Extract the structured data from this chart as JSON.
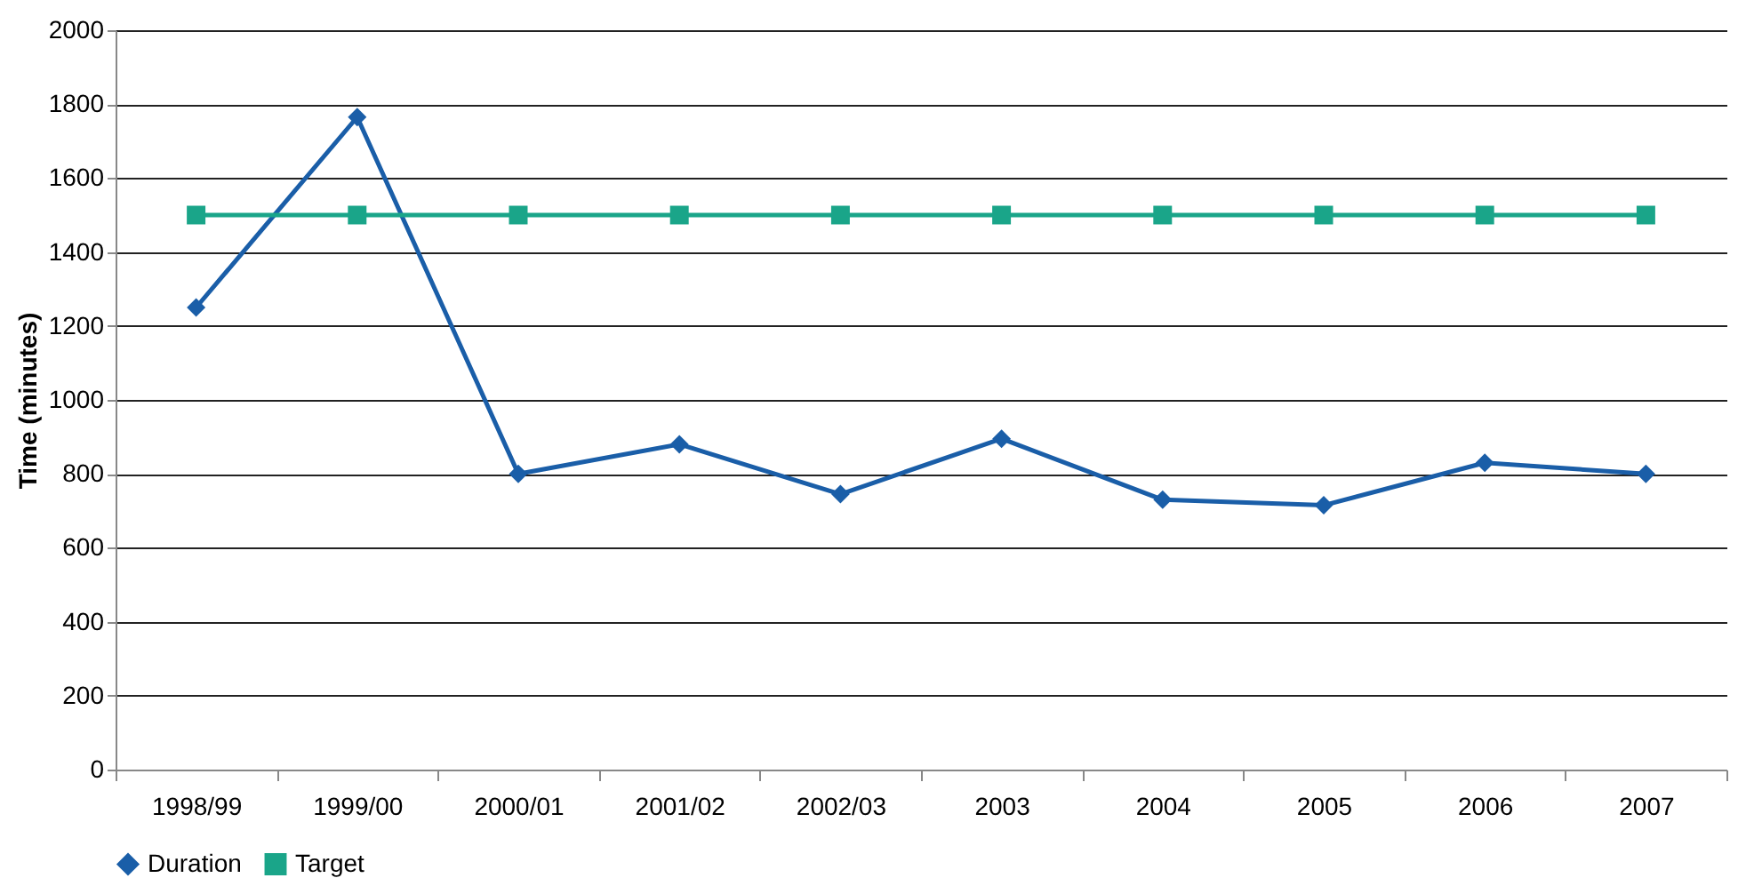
{
  "chart_data": {
    "type": "line",
    "ylabel": "Time (minutes)",
    "categories": [
      "1998/99",
      "1999/00",
      "2000/01",
      "2001/02",
      "2002/03",
      "2003",
      "2004",
      "2005",
      "2006",
      "2007"
    ],
    "series": [
      {
        "name": "Duration",
        "color": "#1a5ea8",
        "marker": "diamond",
        "values": [
          1250,
          1765,
          800,
          880,
          745,
          895,
          730,
          715,
          830,
          800
        ]
      },
      {
        "name": "Target",
        "color": "#1aa589",
        "marker": "square",
        "values": [
          1500,
          1500,
          1500,
          1500,
          1500,
          1500,
          1500,
          1500,
          1500,
          1500
        ]
      }
    ],
    "ylim": [
      0,
      2000
    ],
    "yticks": [
      0,
      200,
      400,
      600,
      800,
      1000,
      1200,
      1400,
      1600,
      1800,
      2000
    ],
    "grid": "y",
    "legend": "bottom",
    "line_style": "solid"
  }
}
